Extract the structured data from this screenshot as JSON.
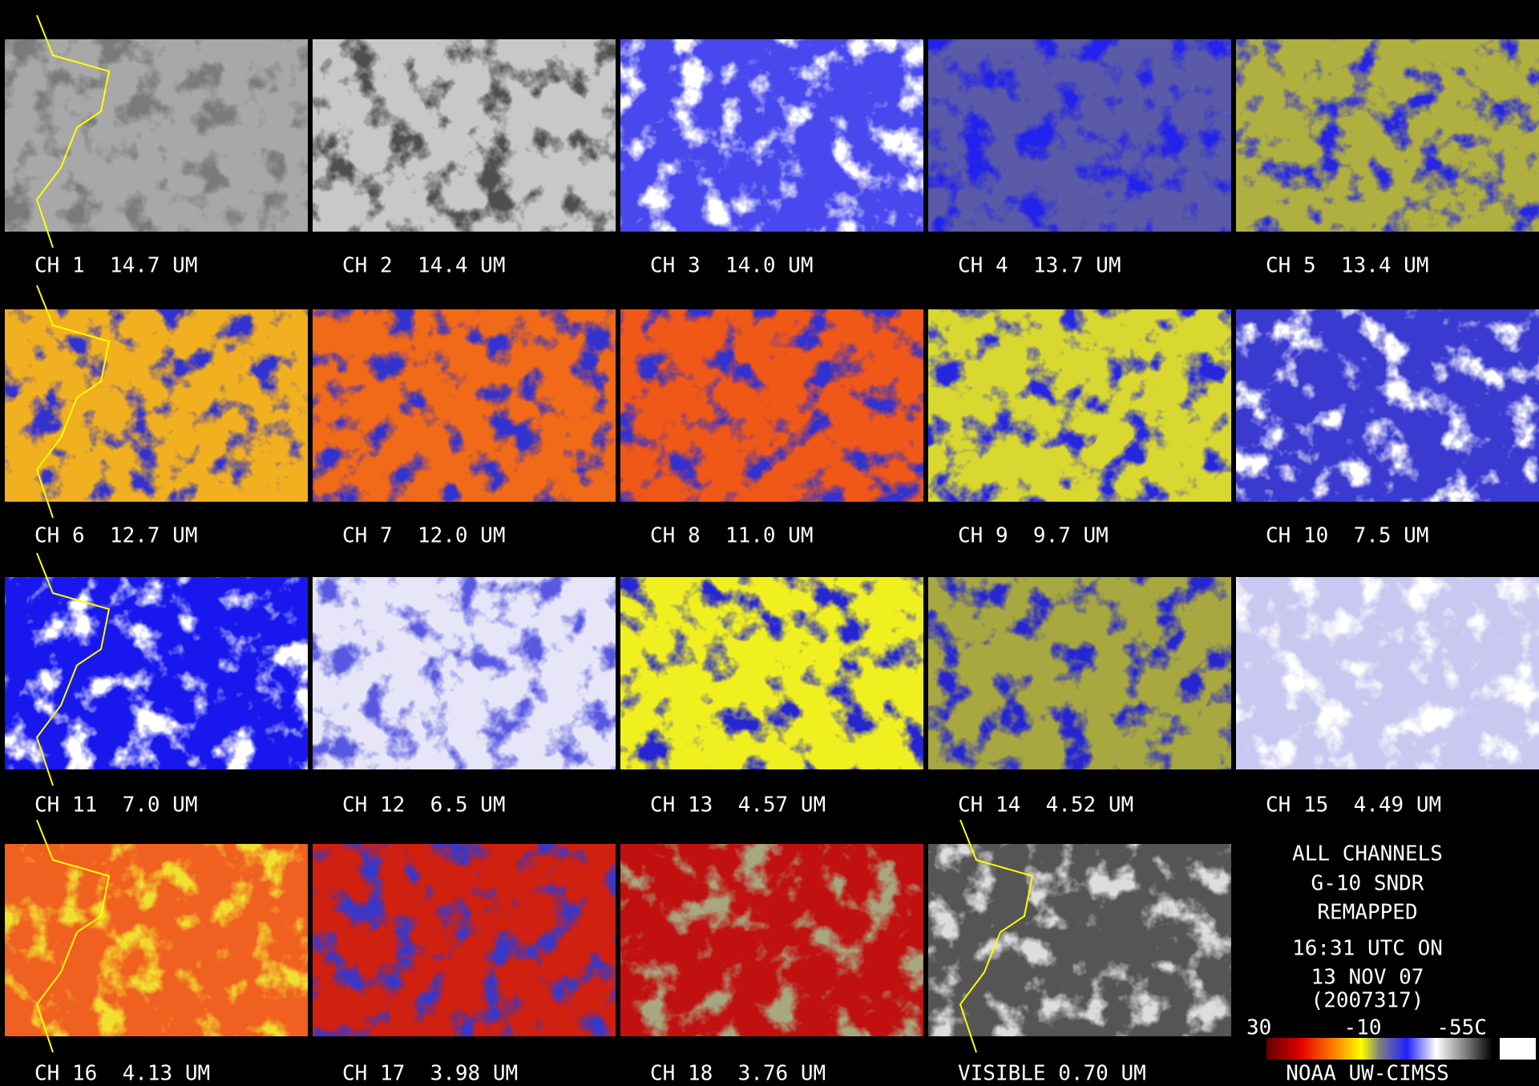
{
  "panels": [
    {
      "label": "CH 1  14.7 UM"
    },
    {
      "label": "CH 2  14.4 UM"
    },
    {
      "label": "CH 3  14.0 UM"
    },
    {
      "label": "CH 4  13.7 UM"
    },
    {
      "label": "CH 5  13.4 UM"
    },
    {
      "label": "CH 6  12.7 UM"
    },
    {
      "label": "CH 7  12.0 UM"
    },
    {
      "label": "CH 8  11.0 UM"
    },
    {
      "label": "CH 9  9.7 UM"
    },
    {
      "label": "CH 10  7.5 UM"
    },
    {
      "label": "CH 11  7.0 UM"
    },
    {
      "label": "CH 12  6.5 UM"
    },
    {
      "label": "CH 13  4.57 UM"
    },
    {
      "label": "CH 14  4.52 UM"
    },
    {
      "label": "CH 15  4.49 UM"
    },
    {
      "label": "CH 16  4.13 UM"
    },
    {
      "label": "CH 17  3.98 UM"
    },
    {
      "label": "CH 18  3.76 UM"
    },
    {
      "label": "VISIBLE 0.70 UM"
    }
  ],
  "info": {
    "lines": [
      "ALL CHANNELS",
      "G-10 SNDR",
      "REMAPPED",
      "16:31 UTC ON",
      "13 NOV 07",
      "(2007317)"
    ]
  },
  "colorbar": {
    "labels": [
      "30",
      "-10",
      "-55C"
    ]
  },
  "credit": "NOAA UW-CIMSS"
}
